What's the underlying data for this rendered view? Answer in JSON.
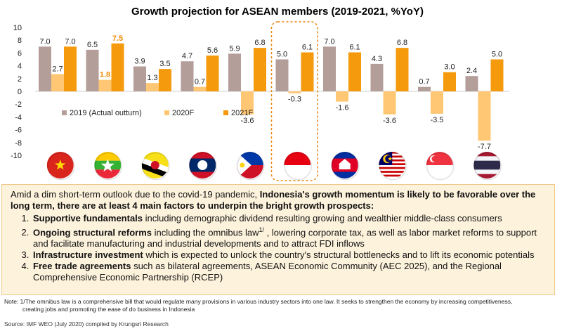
{
  "chart_data": {
    "type": "bar",
    "title": "Growth projection for ASEAN members (2019-2021, %YoY)",
    "categories": [
      "Vietnam",
      "Myanmar",
      "Brunei",
      "Laos",
      "Philippines",
      "Indonesia",
      "Cambodia",
      "Malaysia",
      "Singapore",
      "Thailand"
    ],
    "series": [
      {
        "name": "2019 (Actual outturn)",
        "color": "#b39e9a",
        "values": [
          7.0,
          6.5,
          3.9,
          4.7,
          5.9,
          5.0,
          7.0,
          4.3,
          0.7,
          2.4
        ]
      },
      {
        "name": "2020F",
        "color": "#ffc773",
        "values": [
          2.7,
          1.8,
          1.3,
          0.7,
          -3.6,
          -0.3,
          -1.6,
          -3.6,
          -3.5,
          -7.7
        ]
      },
      {
        "name": "2021F",
        "color": "#f59a0c",
        "values": [
          7.0,
          7.5,
          3.5,
          5.6,
          6.8,
          6.1,
          6.1,
          6.8,
          3.0,
          5.0
        ]
      }
    ],
    "value_labels": [
      [
        "7.0",
        "2.7",
        "7.0"
      ],
      [
        "6.5",
        "1.8",
        "7.5"
      ],
      [
        "3.9",
        "1.3",
        "3.5"
      ],
      [
        "4.7",
        "0.7",
        "5.6"
      ],
      [
        "5.9",
        "-3.6",
        "6.8"
      ],
      [
        "5.0",
        "-0.3",
        "6.1"
      ],
      [
        "7.0",
        "-1.6",
        "6.1"
      ],
      [
        "4.3",
        "-3.6",
        "6.8"
      ],
      [
        "0.7",
        "-3.5",
        "3.0"
      ],
      [
        "2.4",
        "-7.7",
        "5.0"
      ]
    ],
    "yticks": [
      "10",
      "8",
      "6",
      "4",
      "2",
      "0",
      "-2",
      "-4",
      "-6",
      "-8",
      "-10"
    ],
    "ylim": [
      -10,
      10
    ],
    "highlight_category": "Indonesia",
    "highlight_values": [
      [
        1,
        1
      ],
      [
        1,
        2
      ]
    ],
    "legend_position": "lower-left",
    "grid": false
  },
  "flags": [
    {
      "icon": "vietnam-flag-icon"
    },
    {
      "icon": "myanmar-flag-icon"
    },
    {
      "icon": "brunei-flag-icon"
    },
    {
      "icon": "laos-flag-icon"
    },
    {
      "icon": "philippines-flag-icon"
    },
    {
      "icon": "indonesia-flag-icon"
    },
    {
      "icon": "cambodia-flag-icon"
    },
    {
      "icon": "malaysia-flag-icon"
    },
    {
      "icon": "singapore-flag-icon"
    },
    {
      "icon": "thailand-flag-icon"
    }
  ],
  "colors": {
    "highlight_box": "#e8820c",
    "info_bg": "#fdf2dc"
  },
  "info": {
    "intro_plain": "Amid a dim short-term outlook due to the covid-19 pandemic, ",
    "intro_bold": "Indonesia's growth momentum is likely to be favorable over the long term, there are at least 4 main factors to underpin the bright growth prospects:",
    "items": [
      {
        "bold": "Supportive fundamentals",
        "text": " including demographic dividend resulting growing and wealthier middle-class consumers",
        "sup": "",
        "text2": ""
      },
      {
        "bold": "Ongoing structural reforms",
        "text": " including the omnibus law",
        "sup": "1/",
        "text2": " , lowering corporate tax, as well as labor market reforms to support and facilitate manufacturing and industrial developments and to attract FDI inflows"
      },
      {
        "bold": "Infrastructure investment",
        "text": " which is expected to unlock the country's structural bottlenecks and to lift its economic potentials",
        "sup": "",
        "text2": ""
      },
      {
        "bold": "Free trade agreements",
        "text": "  such as bilateral agreements, ASEAN Economic Community (AEC 2025), and the Regional Comprehensive Economic Partnership (RCEP)",
        "sup": "",
        "text2": ""
      }
    ]
  },
  "note": {
    "line1": "Note: 1/The omnibus law is a comprehensive bill that would regulate many provisions in various industry sectors into one law. It seeks to strengthen the economy by increasing competitiveness,",
    "line2": "creating jobs and promoting the ease of do business in Indonesia"
  },
  "source": "Source: IMF WEO (July 2020) compiled by Krungsri Research"
}
